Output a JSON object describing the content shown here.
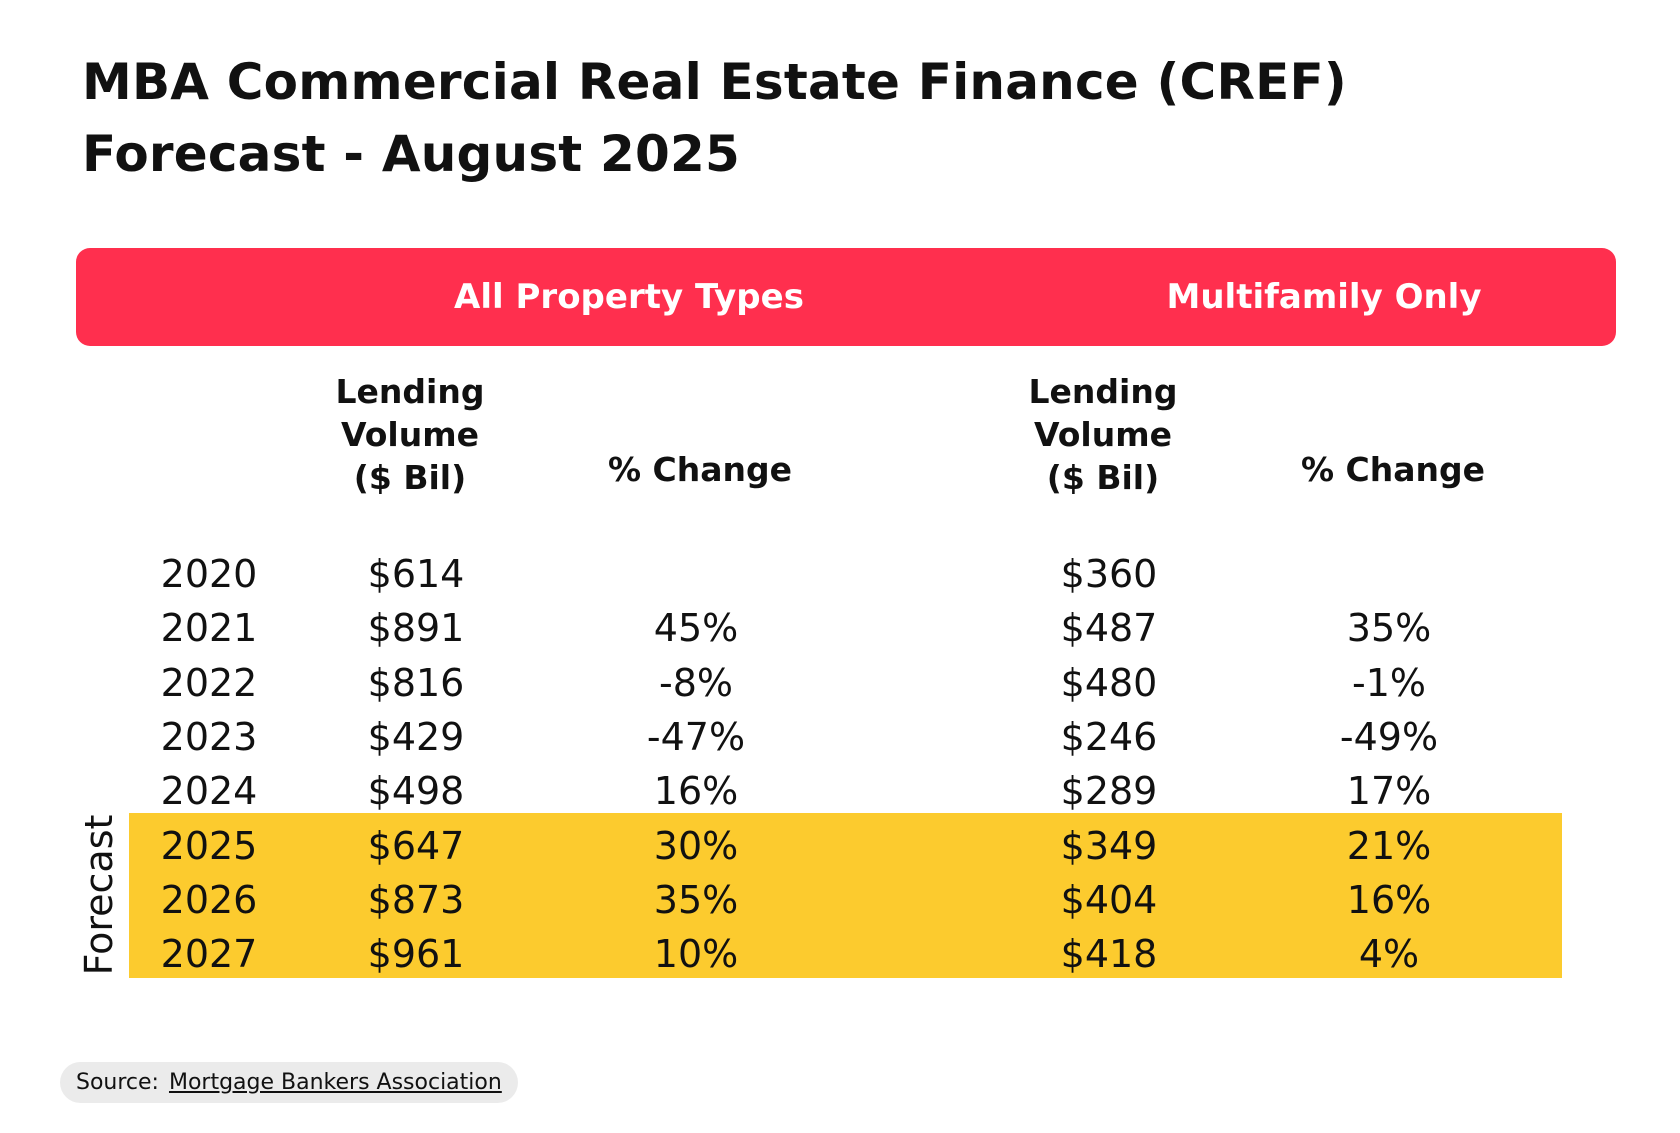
{
  "title_lines": [
    "MBA Commercial Real Estate Finance (CREF)",
    "Forecast - August 2025"
  ],
  "groups": {
    "all": "All Property Types",
    "multifamily": "Multifamily Only"
  },
  "column_headers": {
    "volume_lines": [
      "Lending",
      "Volume",
      "($ Bil)"
    ],
    "change": "% Change"
  },
  "forecast_label": "Forecast",
  "source": {
    "prefix": "Source:",
    "name": "Mortgage Bankers Association"
  },
  "colors": {
    "header_bar": "#FF2F4E",
    "forecast_band": "#FCCB2E",
    "source_pill": "#EBEBEB"
  },
  "chart_data": {
    "type": "table",
    "title": "MBA Commercial Real Estate Finance (CREF) Forecast - August 2025",
    "forecast_years": [
      "2025",
      "2026",
      "2027"
    ],
    "columns": [
      "Year",
      "All Property Types Lending Volume ($ Bil)",
      "All Property Types % Change",
      "Multifamily Lending Volume ($ Bil)",
      "Multifamily % Change"
    ],
    "rows": [
      [
        "2020",
        "$614",
        "",
        "$360",
        ""
      ],
      [
        "2021",
        "$891",
        "45%",
        "$487",
        "35%"
      ],
      [
        "2022",
        "$816",
        "-8%",
        "$480",
        "-1%"
      ],
      [
        "2023",
        "$429",
        "-47%",
        "$246",
        "-49%"
      ],
      [
        "2024",
        "$498",
        "16%",
        "$289",
        "17%"
      ],
      [
        "2025",
        "$647",
        "30%",
        "$349",
        "21%"
      ],
      [
        "2026",
        "$873",
        "35%",
        "$404",
        "16%"
      ],
      [
        "2027",
        "$961",
        "10%",
        "$418",
        "4%"
      ]
    ]
  }
}
